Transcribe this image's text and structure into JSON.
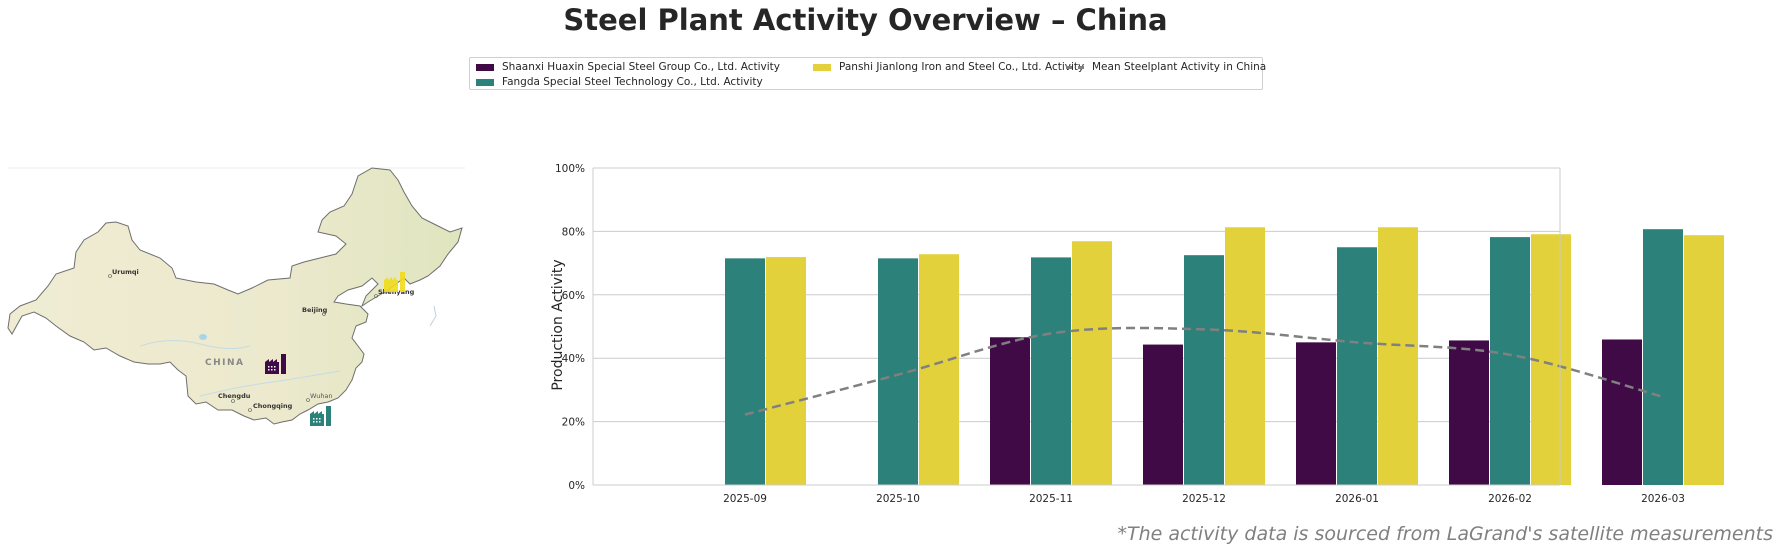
{
  "title": "Steel Plant Activity Overview – China",
  "footnote": "*The activity data is sourced from LaGrand's satellite measurements",
  "legend": {
    "items": [
      {
        "label": "Shaanxi Huaxin Special Steel Group Co., Ltd. Activity",
        "color": "#3f0a46"
      },
      {
        "label": "Fangda Special Steel Technology Co., Ltd. Activity",
        "color": "#2d817b"
      },
      {
        "label": "Panshi Jianlong Iron and Steel Co., Ltd. Activity",
        "color": "#e2d13b"
      },
      {
        "label": "Mean Steelplant Activity in China",
        "color": "#808080",
        "style": "dashed-line"
      }
    ]
  },
  "map": {
    "country_label": "CHINA",
    "cities": [
      "Urumqi",
      "Beijing",
      "Shenyang",
      "Chengdu",
      "Chongqing",
      "Wuhan"
    ],
    "markers": [
      {
        "plant": "Shaanxi Huaxin Special Steel Group Co., Ltd.",
        "icon": "factory-icon",
        "color": "#3f0a46"
      },
      {
        "plant": "Fangda Special Steel Technology Co., Ltd.",
        "icon": "factory-icon",
        "color": "#2d817b"
      },
      {
        "plant": "Panshi Jianlong Iron and Steel Co., Ltd.",
        "icon": "factory-icon",
        "color": "#f1dc1b"
      }
    ]
  },
  "chart_data": {
    "type": "bar",
    "title": "",
    "xlabel": "",
    "ylabel": "Production Activity",
    "ylim": [
      0,
      100
    ],
    "yticks": [
      "0%",
      "20%",
      "40%",
      "60%",
      "80%",
      "100%"
    ],
    "ytick_values": [
      0,
      20,
      40,
      60,
      80,
      100
    ],
    "grid": true,
    "legend_position": "top-center",
    "categories": [
      "2025-09",
      "2025-10",
      "2025-11",
      "2025-12",
      "2026-01",
      "2026-02",
      "2026-03"
    ],
    "series": [
      {
        "name": "Shaanxi Huaxin Special Steel Group Co., Ltd. Activity",
        "color": "#3f0a46",
        "values": [
          null,
          null,
          46.6,
          44.3,
          45.0,
          45.6,
          45.9
        ]
      },
      {
        "name": "Fangda Special Steel Technology Co., Ltd. Activity",
        "color": "#2d817b",
        "values": [
          71.5,
          71.5,
          71.8,
          72.5,
          75.0,
          78.2,
          80.7
        ]
      },
      {
        "name": "Panshi Jianlong Iron and Steel Co., Ltd. Activity",
        "color": "#e2d13b",
        "values": [
          71.9,
          72.8,
          76.9,
          81.3,
          81.3,
          79.1,
          78.8
        ]
      }
    ],
    "line_series": {
      "name": "Mean Steelplant Activity in China",
      "color": "#808080",
      "style": "dashed",
      "values": [
        22.2,
        34.8,
        47.8,
        49.1,
        45.0,
        41.1,
        27.8
      ]
    }
  }
}
